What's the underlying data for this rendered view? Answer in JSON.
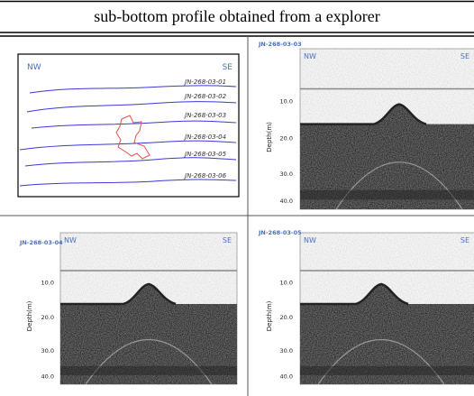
{
  "title": "sub-bottom profile obtained from a explorer",
  "map": {
    "left": "NW",
    "right": "SE",
    "lines": [
      "JN-268-03-01",
      "JN-268-03-02",
      "JN-268-03-03",
      "JN-268-03-04",
      "JN-268-03-05",
      "JN-268-03-06"
    ]
  },
  "panels": [
    {
      "id": "JN-268-03-03",
      "left": "NW",
      "right": "SE",
      "ylabel": "Depth(m)",
      "ticks": [
        "10.0",
        "20.0",
        "30.0",
        "40.0"
      ]
    },
    {
      "id": "JN-268-03-04",
      "left": "NW",
      "right": "SE",
      "ylabel": "Depth(m)",
      "ticks": [
        "10.0",
        "20.0",
        "30.0",
        "40.0"
      ]
    },
    {
      "id": "JN-268-03-05",
      "left": "NW",
      "right": "SE",
      "ylabel": "Depth(m)",
      "ticks": [
        "10.0",
        "20.0",
        "30.0",
        "40.0"
      ]
    }
  ]
}
